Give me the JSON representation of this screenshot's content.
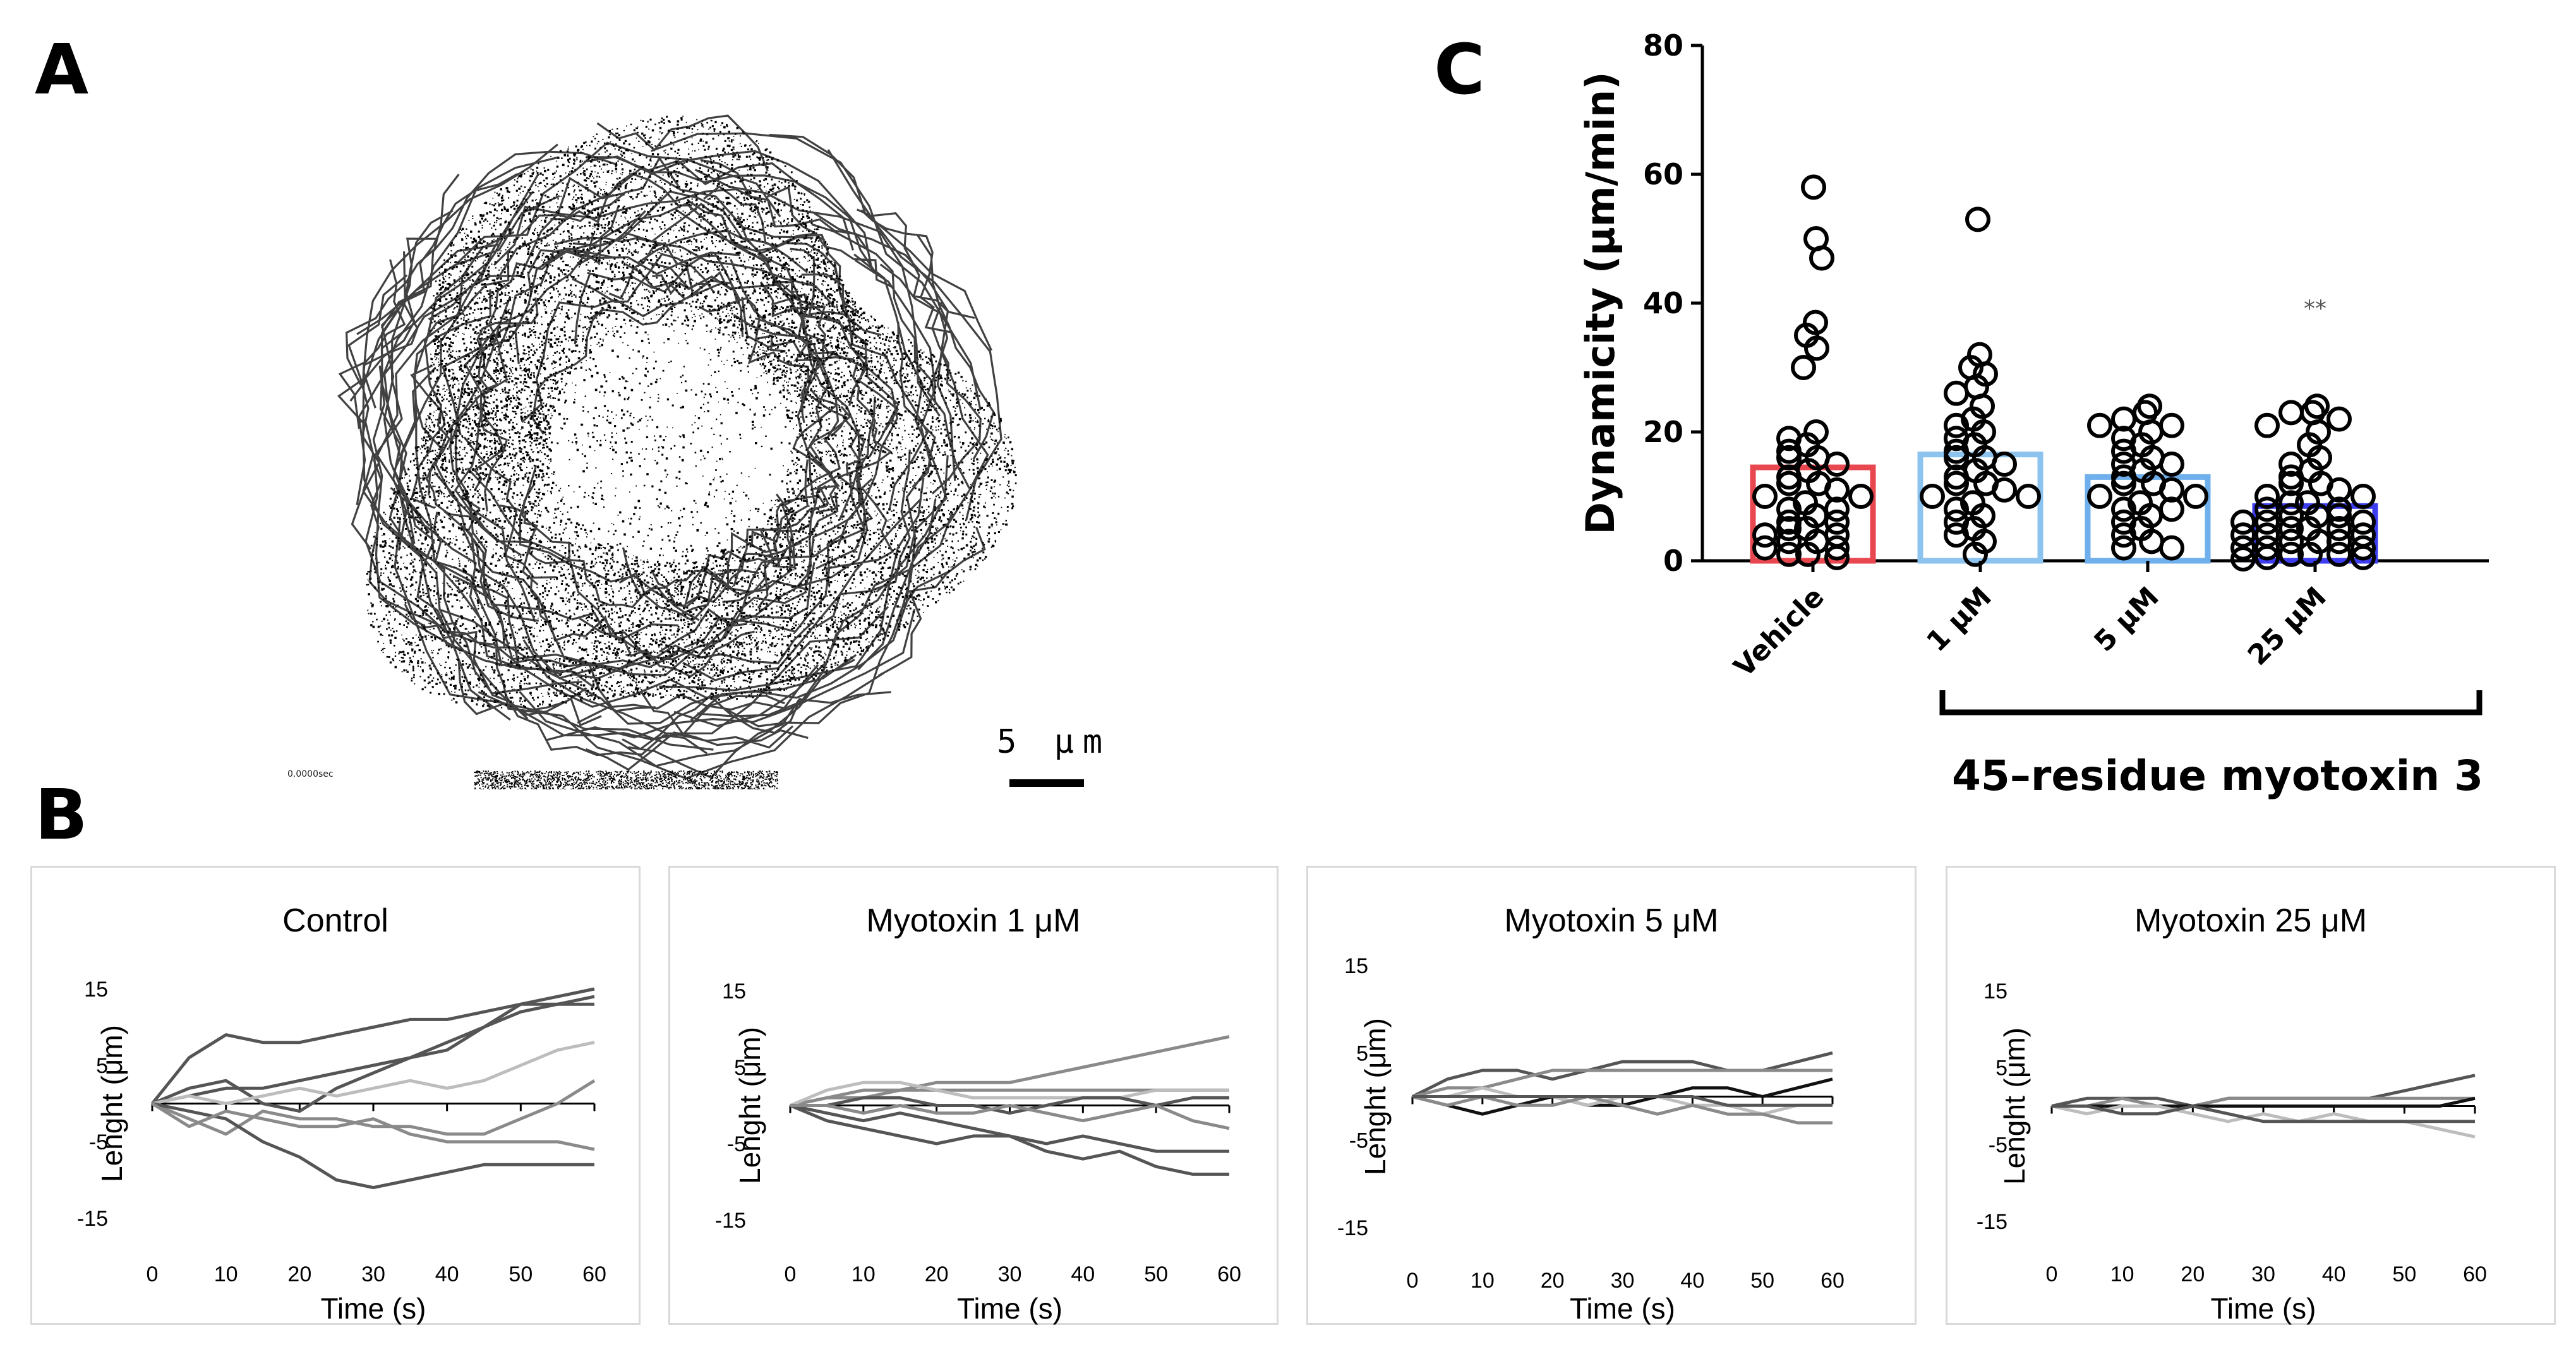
{
  "panels": {
    "a": {
      "letter": "A",
      "scale_label": "5 μm",
      "timestamp": "0.0000sec"
    },
    "b": {
      "letter": "B"
    },
    "c": {
      "letter": "C"
    }
  },
  "colors": {
    "vehicle": "#e8474f",
    "um1": "#8cc3ef",
    "um5": "#6fb0ec",
    "um25": "#3d3df0",
    "trace_dark": "#555555",
    "trace_mid": "#8a8a8a",
    "trace_light": "#bdbdbd",
    "trace_black": "#111111"
  },
  "chart_data": [
    {
      "panel": "C",
      "type": "scatter",
      "ylabel": "Dynamicity (μm/min)",
      "ylim": [
        0,
        80
      ],
      "yticks": [
        0,
        20,
        40,
        60,
        80
      ],
      "categories": [
        "Vehicle",
        "1 μM",
        "5 μM",
        "25 μM"
      ],
      "bar_means": [
        14.5,
        16.5,
        13,
        8.5
      ],
      "bracket_label": "45–residue myotoxin 3",
      "significance": [
        {
          "category": "25 μM",
          "label": "**"
        }
      ],
      "series": [
        {
          "category": "Vehicle",
          "values": [
            58,
            50,
            47,
            37,
            35,
            33,
            30,
            20,
            19,
            18,
            17,
            16,
            16,
            15,
            14,
            13,
            12,
            12,
            11,
            10,
            10,
            9,
            8,
            8,
            7,
            6,
            6,
            5,
            5,
            4,
            4,
            3,
            3,
            2,
            2,
            1,
            1,
            0.5
          ]
        },
        {
          "category": "1 μM",
          "values": [
            53,
            32,
            30,
            29,
            27,
            26,
            24,
            22,
            21,
            20,
            19,
            18,
            17,
            16,
            16,
            15,
            14,
            13,
            12,
            12,
            11,
            10,
            10,
            9,
            8,
            7,
            6,
            5,
            4,
            3,
            1
          ]
        },
        {
          "category": "5 μM",
          "values": [
            24,
            23,
            22,
            21,
            21,
            20,
            19,
            18,
            17,
            16,
            15,
            15,
            14,
            13,
            12,
            12,
            11,
            10,
            10,
            9,
            8,
            8,
            7,
            6,
            5,
            4,
            3,
            2,
            2
          ]
        },
        {
          "category": "25 μM",
          "values": [
            24,
            23,
            23,
            22,
            21,
            20,
            18,
            16,
            15,
            14,
            13,
            12,
            12,
            11,
            10,
            10,
            9,
            9,
            8,
            8,
            7,
            7,
            7,
            6,
            6,
            6,
            5,
            5,
            5,
            4,
            4,
            4,
            3,
            3,
            3,
            2,
            2,
            2,
            1,
            1,
            1,
            0.5,
            0.5,
            0.3
          ]
        }
      ]
    },
    {
      "panel": "B",
      "type": "line",
      "title": "Control",
      "xlabel": "Time (s)",
      "ylabel": "Lenght (μm)",
      "xticks": [
        0,
        10,
        20,
        30,
        40,
        50,
        60
      ],
      "yticks": [
        15,
        5,
        -5,
        -15
      ],
      "xlim": [
        0,
        60
      ],
      "ylim": [
        -15,
        15
      ],
      "series": [
        {
          "shade": "dark",
          "x": [
            0,
            5,
            10,
            15,
            20,
            25,
            30,
            35,
            40,
            45,
            50,
            55,
            60
          ],
          "y": [
            0,
            6,
            9,
            8,
            8,
            9,
            10,
            11,
            11,
            12,
            13,
            13,
            14
          ]
        },
        {
          "shade": "dark",
          "x": [
            0,
            5,
            10,
            15,
            20,
            25,
            30,
            35,
            40,
            45,
            50,
            55,
            60
          ],
          "y": [
            0,
            1,
            2,
            2,
            3,
            4,
            5,
            6,
            7,
            10,
            13,
            14,
            15
          ]
        },
        {
          "shade": "dark",
          "x": [
            0,
            5,
            10,
            15,
            20,
            25,
            30,
            35,
            40,
            45,
            50,
            55,
            60
          ],
          "y": [
            0,
            2,
            3,
            0,
            -1,
            2,
            4,
            6,
            8,
            10,
            12,
            13,
            13
          ]
        },
        {
          "shade": "light",
          "x": [
            0,
            5,
            10,
            15,
            20,
            25,
            30,
            35,
            40,
            45,
            50,
            55,
            60
          ],
          "y": [
            0,
            1,
            0,
            1,
            2,
            1,
            2,
            3,
            2,
            3,
            5,
            7,
            8
          ]
        },
        {
          "shade": "mid",
          "x": [
            0,
            5,
            10,
            15,
            20,
            25,
            30,
            35,
            40,
            45,
            50,
            55,
            60
          ],
          "y": [
            0,
            -2,
            -4,
            -1,
            -2,
            -2,
            -3,
            -3,
            -4,
            -4,
            -2,
            0,
            3
          ]
        },
        {
          "shade": "dark",
          "x": [
            0,
            5,
            10,
            15,
            20,
            25,
            30,
            35,
            40,
            45,
            50,
            55,
            60
          ],
          "y": [
            0,
            -1,
            -2,
            -5,
            -7,
            -10,
            -11,
            -10,
            -9,
            -8,
            -8,
            -8,
            -8
          ]
        },
        {
          "shade": "mid",
          "x": [
            0,
            5,
            10,
            15,
            20,
            25,
            30,
            35,
            40,
            45,
            50,
            55,
            60
          ],
          "y": [
            0,
            -3,
            -1,
            -2,
            -3,
            -3,
            -2,
            -4,
            -5,
            -5,
            -5,
            -5,
            -6
          ]
        }
      ]
    },
    {
      "panel": "B",
      "type": "line",
      "title": "Myotoxin 1 μM",
      "xlabel": "Time (s)",
      "ylabel": "Lenght  (μm)",
      "xticks": [
        0,
        10,
        20,
        30,
        40,
        50,
        60
      ],
      "yticks": [
        15,
        5,
        -5,
        -15
      ],
      "xlim": [
        0,
        60
      ],
      "ylim": [
        -15,
        15
      ],
      "series": [
        {
          "shade": "mid",
          "x": [
            0,
            5,
            10,
            15,
            20,
            25,
            30,
            35,
            40,
            45,
            50,
            55,
            60
          ],
          "y": [
            0,
            1,
            2,
            2,
            3,
            3,
            3,
            4,
            5,
            6,
            7,
            8,
            9
          ]
        },
        {
          "shade": "mid",
          "x": [
            0,
            5,
            10,
            15,
            20,
            25,
            30,
            35,
            40,
            45,
            50,
            55,
            60
          ],
          "y": [
            0,
            1,
            1,
            2,
            2,
            2,
            2,
            2,
            2,
            2,
            2,
            2,
            2
          ]
        },
        {
          "shade": "light",
          "x": [
            0,
            5,
            10,
            15,
            20,
            25,
            30,
            35,
            40,
            45,
            50,
            55,
            60
          ],
          "y": [
            0,
            2,
            3,
            3,
            2,
            1,
            1,
            1,
            1,
            1,
            2,
            2,
            2
          ]
        },
        {
          "shade": "dark",
          "x": [
            0,
            5,
            10,
            15,
            20,
            25,
            30,
            35,
            40,
            45,
            50,
            55,
            60
          ],
          "y": [
            0,
            0,
            1,
            1,
            0,
            0,
            -1,
            0,
            1,
            1,
            0,
            1,
            1
          ]
        },
        {
          "shade": "dark",
          "x": [
            0,
            5,
            10,
            15,
            20,
            25,
            30,
            35,
            40,
            45,
            50,
            55,
            60
          ],
          "y": [
            0,
            -1,
            -2,
            -1,
            -2,
            -3,
            -4,
            -5,
            -4,
            -5,
            -6,
            -6,
            -6
          ]
        },
        {
          "shade": "dark",
          "x": [
            0,
            5,
            10,
            15,
            20,
            25,
            30,
            35,
            40,
            45,
            50,
            55,
            60
          ],
          "y": [
            0,
            -2,
            -3,
            -4,
            -5,
            -4,
            -4,
            -6,
            -7,
            -6,
            -8,
            -9,
            -9
          ]
        },
        {
          "shade": "mid",
          "x": [
            0,
            5,
            10,
            15,
            20,
            25,
            30,
            35,
            40,
            45,
            50,
            55,
            60
          ],
          "y": [
            0,
            0,
            -1,
            0,
            -1,
            -1,
            0,
            -1,
            -2,
            -1,
            0,
            -2,
            -3
          ]
        }
      ]
    },
    {
      "panel": "B",
      "type": "line",
      "title": "Myotoxin 5 μM",
      "xlabel": "Time (s)",
      "ylabel": "Lenght  (μm)",
      "xticks": [
        0,
        10,
        20,
        30,
        40,
        50,
        60
      ],
      "yticks": [
        15,
        5,
        -5,
        -15
      ],
      "xlim": [
        0,
        60
      ],
      "ylim": [
        -15,
        15
      ],
      "series": [
        {
          "shade": "dark",
          "x": [
            0,
            5,
            10,
            15,
            20,
            25,
            30,
            35,
            40,
            45,
            50,
            55,
            60
          ],
          "y": [
            0,
            2,
            3,
            3,
            2,
            3,
            4,
            4,
            4,
            3,
            3,
            4,
            5
          ]
        },
        {
          "shade": "mid",
          "x": [
            0,
            5,
            10,
            15,
            20,
            25,
            30,
            35,
            40,
            45,
            50,
            55,
            60
          ],
          "y": [
            0,
            1,
            1,
            2,
            3,
            3,
            3,
            3,
            3,
            3,
            3,
            3,
            3
          ]
        },
        {
          "shade": "black",
          "x": [
            0,
            5,
            10,
            15,
            20,
            25,
            30,
            35,
            40,
            45,
            50,
            55,
            60
          ],
          "y": [
            0,
            -1,
            -2,
            -1,
            0,
            -1,
            -1,
            0,
            1,
            1,
            0,
            1,
            2
          ]
        },
        {
          "shade": "light",
          "x": [
            0,
            5,
            10,
            15,
            20,
            25,
            30,
            35,
            40,
            45,
            50,
            55,
            60
          ],
          "y": [
            0,
            0,
            1,
            0,
            0,
            -1,
            0,
            0,
            -1,
            -1,
            -2,
            -1,
            -1
          ]
        },
        {
          "shade": "mid",
          "x": [
            0,
            5,
            10,
            15,
            20,
            25,
            30,
            35,
            40,
            45,
            50,
            55,
            60
          ],
          "y": [
            0,
            -1,
            0,
            -1,
            -1,
            0,
            -1,
            -2,
            -1,
            -2,
            -2,
            -3,
            -3
          ]
        },
        {
          "shade": "dark",
          "x": [
            0,
            5,
            10,
            15,
            20,
            25,
            30,
            35,
            40,
            45,
            50,
            55,
            60
          ],
          "y": [
            0,
            0,
            0,
            0,
            0,
            0,
            0,
            0,
            0,
            -1,
            -1,
            -1,
            -1
          ]
        }
      ]
    },
    {
      "panel": "B",
      "type": "line",
      "title": "Myotoxin 25 μM",
      "xlabel": "Time (s)",
      "ylabel": "Lenght  (μm)",
      "xticks": [
        0,
        10,
        20,
        30,
        40,
        50,
        60
      ],
      "yticks": [
        15,
        5,
        -5,
        -15
      ],
      "xlim": [
        0,
        60
      ],
      "ylim": [
        -15,
        15
      ],
      "series": [
        {
          "shade": "dark",
          "x": [
            0,
            5,
            10,
            15,
            20,
            25,
            30,
            35,
            40,
            45,
            50,
            55,
            60
          ],
          "y": [
            0,
            1,
            1,
            1,
            0,
            1,
            1,
            1,
            1,
            1,
            2,
            3,
            4
          ]
        },
        {
          "shade": "mid",
          "x": [
            0,
            5,
            10,
            15,
            20,
            25,
            30,
            35,
            40,
            45,
            50,
            55,
            60
          ],
          "y": [
            0,
            0,
            1,
            0,
            0,
            1,
            1,
            1,
            1,
            1,
            1,
            1,
            1
          ]
        },
        {
          "shade": "black",
          "x": [
            0,
            5,
            10,
            15,
            20,
            25,
            30,
            35,
            40,
            45,
            50,
            55,
            60
          ],
          "y": [
            0,
            0,
            0,
            0,
            0,
            0,
            0,
            0,
            0,
            0,
            0,
            0,
            1
          ]
        },
        {
          "shade": "light",
          "x": [
            0,
            5,
            10,
            15,
            20,
            25,
            30,
            35,
            40,
            45,
            50,
            55,
            60
          ],
          "y": [
            0,
            -1,
            0,
            0,
            -1,
            -2,
            -1,
            -2,
            -1,
            -2,
            -2,
            -3,
            -4
          ]
        },
        {
          "shade": "dark",
          "x": [
            0,
            5,
            10,
            15,
            20,
            25,
            30,
            35,
            40,
            45,
            50,
            55,
            60
          ],
          "y": [
            0,
            0,
            -1,
            -1,
            0,
            -1,
            -2,
            -2,
            -2,
            -2,
            -2,
            -2,
            -2
          ]
        }
      ]
    }
  ]
}
